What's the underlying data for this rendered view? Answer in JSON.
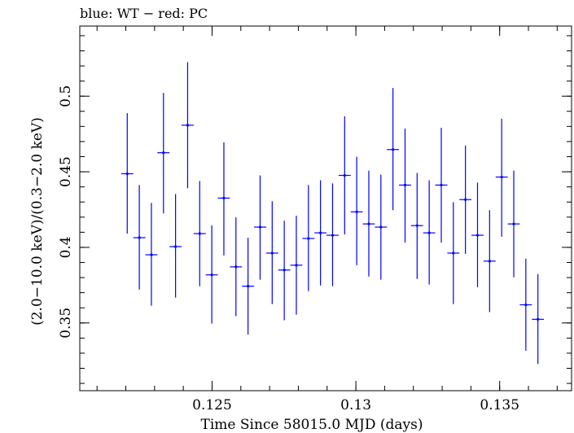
{
  "chart_data": {
    "type": "scatter",
    "title": "blue: WT − red: PC",
    "xlabel": "Time Since 58015.0 MJD (days)",
    "ylabel": "(2.0−10.0 keV)/(0.3−2.0 keV)",
    "xlim": [
      0.1204,
      0.1375
    ],
    "ylim": [
      0.3052,
      0.5464
    ],
    "xticks": [
      {
        "value": 0.125,
        "label": "0.125"
      },
      {
        "value": 0.13,
        "label": "0.13"
      },
      {
        "value": 0.135,
        "label": "0.135"
      }
    ],
    "yticks": [
      {
        "value": 0.35,
        "label": "0.35"
      },
      {
        "value": 0.4,
        "label": "0.4"
      },
      {
        "value": 0.45,
        "label": "0.45"
      },
      {
        "value": 0.5,
        "label": "0.5"
      }
    ],
    "grid": false,
    "series": [
      {
        "color": "#0000ff",
        "points": [
          {
            "x": 0.12205,
            "xerr": 0.00021,
            "y": 0.4487,
            "ylo": 0.4091,
            "yhi": 0.4888
          },
          {
            "x": 0.12247,
            "xerr": 0.00021,
            "y": 0.4064,
            "ylo": 0.3721,
            "yhi": 0.4412
          },
          {
            "x": 0.12289,
            "xerr": 0.00021,
            "y": 0.3951,
            "ylo": 0.3614,
            "yhi": 0.4294
          },
          {
            "x": 0.12331,
            "xerr": 0.00021,
            "y": 0.4626,
            "ylo": 0.4225,
            "yhi": 0.5022
          },
          {
            "x": 0.12373,
            "xerr": 0.00021,
            "y": 0.4005,
            "ylo": 0.3668,
            "yhi": 0.4353
          },
          {
            "x": 0.12415,
            "xerr": 0.00021,
            "y": 0.4808,
            "ylo": 0.4391,
            "yhi": 0.5225
          },
          {
            "x": 0.12457,
            "xerr": 0.00021,
            "y": 0.4091,
            "ylo": 0.3743,
            "yhi": 0.4439
          },
          {
            "x": 0.12499,
            "xerr": 0.00021,
            "y": 0.3818,
            "ylo": 0.3496,
            "yhi": 0.4145
          },
          {
            "x": 0.12541,
            "xerr": 0.00021,
            "y": 0.4326,
            "ylo": 0.3947,
            "yhi": 0.4695
          },
          {
            "x": 0.12583,
            "xerr": 0.00021,
            "y": 0.3871,
            "ylo": 0.3545,
            "yhi": 0.4198
          },
          {
            "x": 0.12625,
            "xerr": 0.00021,
            "y": 0.3743,
            "ylo": 0.3423,
            "yhi": 0.4064
          },
          {
            "x": 0.12667,
            "xerr": 0.00021,
            "y": 0.4134,
            "ylo": 0.3786,
            "yhi": 0.4476
          },
          {
            "x": 0.12709,
            "xerr": 0.00021,
            "y": 0.3962,
            "ylo": 0.3625,
            "yhi": 0.4305
          },
          {
            "x": 0.12751,
            "xerr": 0.00021,
            "y": 0.385,
            "ylo": 0.3518,
            "yhi": 0.4176
          },
          {
            "x": 0.12793,
            "xerr": 0.00021,
            "y": 0.3882,
            "ylo": 0.3555,
            "yhi": 0.4209
          },
          {
            "x": 0.12835,
            "xerr": 0.00021,
            "y": 0.4059,
            "ylo": 0.3711,
            "yhi": 0.4412
          },
          {
            "x": 0.12877,
            "xerr": 0.00021,
            "y": 0.4096,
            "ylo": 0.3748,
            "yhi": 0.4444
          },
          {
            "x": 0.12919,
            "xerr": 0.00021,
            "y": 0.408,
            "ylo": 0.3743,
            "yhi": 0.4423
          },
          {
            "x": 0.12961,
            "xerr": 0.00021,
            "y": 0.4476,
            "ylo": 0.4086,
            "yhi": 0.4867
          },
          {
            "x": 0.13003,
            "xerr": 0.00021,
            "y": 0.4235,
            "ylo": 0.3882,
            "yhi": 0.4599
          },
          {
            "x": 0.13045,
            "xerr": 0.00021,
            "y": 0.4155,
            "ylo": 0.3807,
            "yhi": 0.4508
          },
          {
            "x": 0.13087,
            "xerr": 0.00021,
            "y": 0.4134,
            "ylo": 0.3786,
            "yhi": 0.4481
          },
          {
            "x": 0.13129,
            "xerr": 0.00021,
            "y": 0.4647,
            "ylo": 0.4246,
            "yhi": 0.5054
          },
          {
            "x": 0.13171,
            "xerr": 0.00021,
            "y": 0.4412,
            "ylo": 0.4032,
            "yhi": 0.4786
          },
          {
            "x": 0.13213,
            "xerr": 0.00021,
            "y": 0.4144,
            "ylo": 0.3791,
            "yhi": 0.4492
          },
          {
            "x": 0.13255,
            "xerr": 0.00021,
            "y": 0.4096,
            "ylo": 0.3754,
            "yhi": 0.4444
          },
          {
            "x": 0.13297,
            "xerr": 0.00021,
            "y": 0.4412,
            "ylo": 0.4032,
            "yhi": 0.4791
          },
          {
            "x": 0.13339,
            "xerr": 0.00021,
            "y": 0.3962,
            "ylo": 0.3625,
            "yhi": 0.4299
          },
          {
            "x": 0.13381,
            "xerr": 0.00021,
            "y": 0.4316,
            "ylo": 0.3957,
            "yhi": 0.4674
          },
          {
            "x": 0.13423,
            "xerr": 0.00021,
            "y": 0.408,
            "ylo": 0.3737,
            "yhi": 0.4428
          },
          {
            "x": 0.13465,
            "xerr": 0.00021,
            "y": 0.3909,
            "ylo": 0.3572,
            "yhi": 0.4246
          },
          {
            "x": 0.13507,
            "xerr": 0.00021,
            "y": 0.4465,
            "ylo": 0.407,
            "yhi": 0.4851
          },
          {
            "x": 0.13549,
            "xerr": 0.00021,
            "y": 0.4155,
            "ylo": 0.3802,
            "yhi": 0.4508
          },
          {
            "x": 0.13591,
            "xerr": 0.00021,
            "y": 0.362,
            "ylo": 0.3316,
            "yhi": 0.3925
          },
          {
            "x": 0.13633,
            "xerr": 0.00021,
            "y": 0.3524,
            "ylo": 0.3229,
            "yhi": 0.3823
          }
        ]
      }
    ]
  }
}
